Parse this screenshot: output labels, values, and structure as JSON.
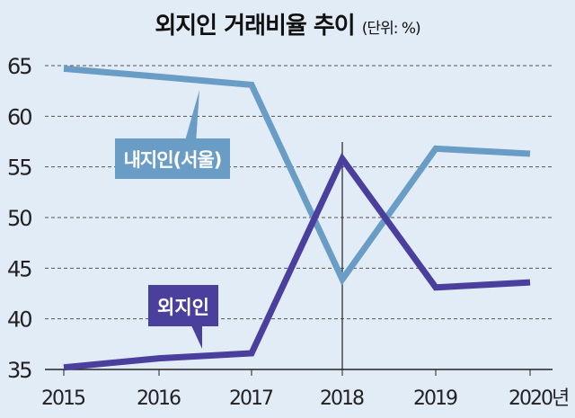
{
  "chart_data": {
    "type": "line",
    "title": "외지인 거래비율 추이",
    "unit": "(단위: %)",
    "x": [
      "2015",
      "2016",
      "2017",
      "2018",
      "2019",
      "2020년"
    ],
    "yticks": [
      35,
      40,
      45,
      50,
      55,
      60,
      65
    ],
    "ylim": [
      35,
      65
    ],
    "grid": true,
    "annotation": "vertical line at 2018",
    "series": [
      {
        "name": "내지인(서울)",
        "values": [
          64.7,
          63.9,
          63.1,
          43.9,
          56.8,
          56.3
        ],
        "color": "#6a9dc6"
      },
      {
        "name": "외지인",
        "values": [
          35.2,
          36.1,
          36.6,
          55.8,
          43.1,
          43.6
        ],
        "color": "#4b3f9e"
      }
    ]
  }
}
